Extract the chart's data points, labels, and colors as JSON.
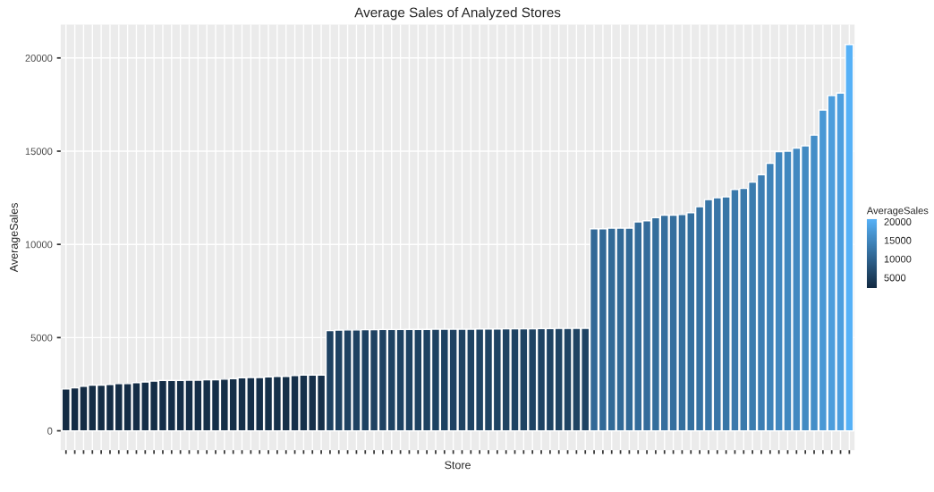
{
  "chart_data": {
    "type": "bar",
    "title": "Average Sales of Analyzed Stores",
    "xlabel": "Store",
    "ylabel": "AverageSales",
    "clabel": "AverageSales",
    "categories": [
      null,
      null,
      null,
      null,
      null,
      null,
      null,
      null,
      null,
      null,
      null,
      null,
      null,
      null,
      null,
      null,
      null,
      null,
      null,
      null,
      null,
      null,
      null,
      null,
      null,
      null,
      null,
      null,
      null,
      null,
      null,
      null,
      null,
      null,
      null,
      null,
      null,
      null,
      null,
      null,
      null,
      null,
      null,
      null,
      null,
      null,
      null,
      null,
      null,
      null,
      null,
      null,
      null,
      null,
      null,
      null,
      null,
      null,
      null,
      null,
      null,
      null,
      null,
      null,
      null,
      null,
      null,
      null,
      null,
      null,
      null,
      null,
      null,
      null,
      null,
      null,
      null,
      null,
      null,
      null,
      null,
      null,
      null,
      null,
      null,
      null,
      null,
      null,
      null,
      null
    ],
    "values": [
      2240,
      2300,
      2390,
      2450,
      2450,
      2490,
      2530,
      2530,
      2580,
      2620,
      2670,
      2700,
      2700,
      2700,
      2710,
      2710,
      2740,
      2740,
      2770,
      2800,
      2850,
      2860,
      2860,
      2890,
      2920,
      2920,
      2960,
      2990,
      2990,
      2990,
      5370,
      5400,
      5410,
      5410,
      5420,
      5420,
      5430,
      5430,
      5430,
      5440,
      5440,
      5440,
      5450,
      5450,
      5450,
      5450,
      5450,
      5460,
      5460,
      5460,
      5470,
      5470,
      5470,
      5470,
      5480,
      5480,
      5490,
      5490,
      5500,
      5500,
      10840,
      10840,
      10870,
      10870,
      10870,
      11210,
      11270,
      11430,
      11570,
      11570,
      11600,
      11700,
      12020,
      12400,
      12500,
      12550,
      12950,
      13000,
      13340,
      13740,
      14350,
      14970,
      15000,
      15170,
      15290,
      15860,
      17210,
      17980,
      18120,
      20720
    ],
    "colors": [
      "#132b43",
      "#132b44",
      "#142c44",
      "#142d45",
      "#142d45",
      "#142d46",
      "#142d46",
      "#142d46",
      "#142d46",
      "#142e47",
      "#152e47",
      "#152e48",
      "#152e48",
      "#152e48",
      "#152e48",
      "#152e48",
      "#152f48",
      "#152f48",
      "#152f48",
      "#152f48",
      "#152f49",
      "#152f49",
      "#152f49",
      "#153049",
      "#153049",
      "#153049",
      "#16304a",
      "#16304a",
      "#16304a",
      "#16304a",
      "#1e4262",
      "#1e4262",
      "#1e4262",
      "#1e4262",
      "#1e4262",
      "#1e4262",
      "#1e4262",
      "#1e4262",
      "#1e4262",
      "#1e4262",
      "#1e4262",
      "#1e4262",
      "#1e4262",
      "#1e4262",
      "#1e4262",
      "#1f4363",
      "#1f4363",
      "#1f4363",
      "#1f4363",
      "#1f4363",
      "#1f4363",
      "#1f4363",
      "#1f4363",
      "#1f4363",
      "#1f4363",
      "#1f4363",
      "#1f4363",
      "#1f4363",
      "#1f4363",
      "#1f4363",
      "#326997",
      "#326997",
      "#326a97",
      "#326a97",
      "#326a97",
      "#346c9a",
      "#346c9b",
      "#346e9c",
      "#356f9e",
      "#356f9e",
      "#356f9e",
      "#35709f",
      "#3672a2",
      "#3875a6",
      "#3875a7",
      "#3876a7",
      "#3a79ab",
      "#3a79ac",
      "#3b7caf",
      "#3d7eb3",
      "#3f83b9",
      "#4187bf",
      "#4188bf",
      "#4289c1",
      "#428ac2",
      "#448ec8",
      "#4998d5",
      "#4c9ddc",
      "#4d9ede",
      "#56b1f7"
    ],
    "ylim": [
      -1040,
      21790
    ],
    "yticks": [
      0,
      5000,
      10000,
      15000,
      20000
    ],
    "clim": [
      2240,
      20720
    ],
    "cticks": [
      5000,
      10000,
      15000,
      20000
    ],
    "grid": true
  }
}
